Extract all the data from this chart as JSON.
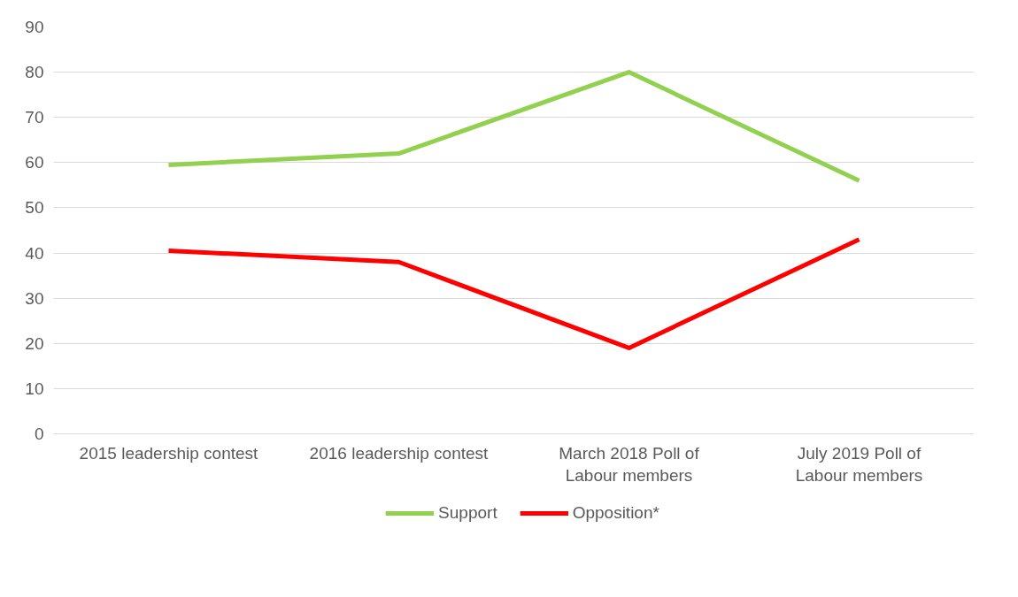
{
  "chart_data": {
    "type": "line",
    "categories": [
      "2015 leadership contest",
      "2016 leadership contest",
      "March 2018 Poll of Labour members",
      "July 2019 Poll of Labour members"
    ],
    "series": [
      {
        "name": "Support",
        "color": "#92d050",
        "values": [
          59.5,
          62,
          80,
          56
        ]
      },
      {
        "name": "Opposition*",
        "color": "#ff0000",
        "values": [
          40.5,
          38,
          19,
          43
        ]
      }
    ],
    "ylim": [
      0,
      90
    ],
    "yticks": [
      0,
      10,
      20,
      30,
      40,
      50,
      60,
      70,
      80,
      90
    ],
    "grid": "y",
    "legend": "bottom",
    "marker": "none",
    "line_style": "solid"
  }
}
